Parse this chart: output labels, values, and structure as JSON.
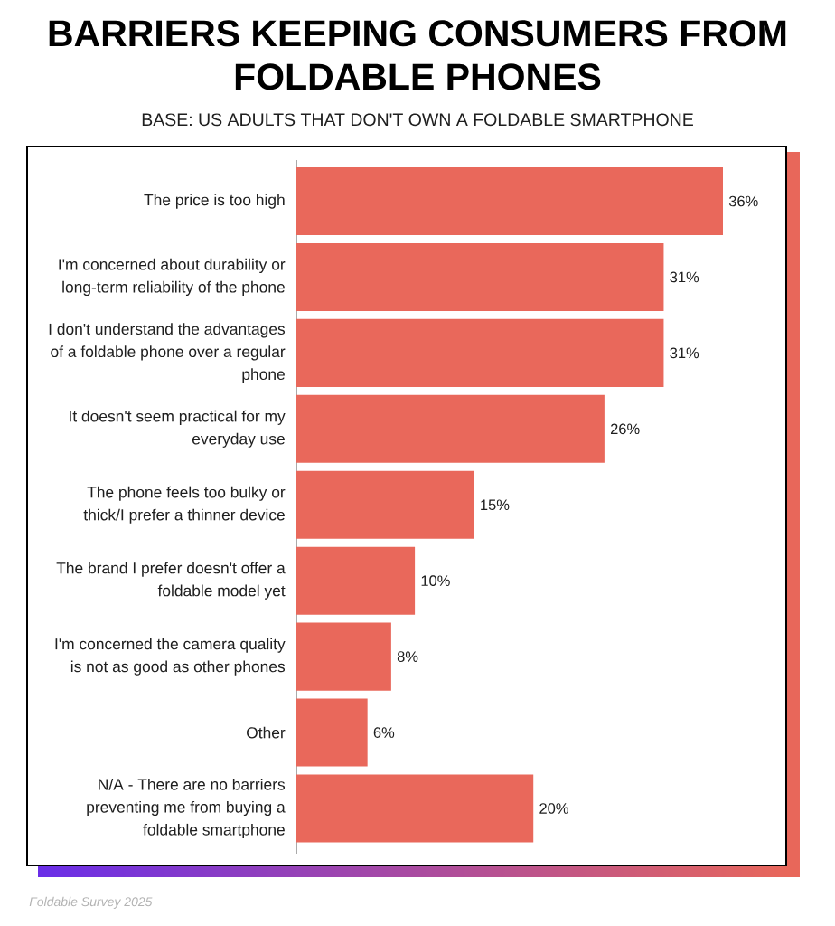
{
  "chart_data": {
    "type": "bar",
    "orientation": "horizontal",
    "title": "BARRIERS KEEPING CONSUMERS FROM FOLDABLE PHONES",
    "subtitle": "BASE: US ADULTS THAT DON'T OWN A FOLDABLE SMARTPHONE",
    "categories": [
      "The price is too high",
      "I'm concerned about durability or long-term reliability of the phone",
      "I don't understand the advantages of a foldable phone over a regular phone",
      "It doesn't seem practical for my everyday use",
      "The phone feels too bulky or thick/I prefer a thinner device",
      "The brand I prefer doesn't offer a foldable model yet",
      "I'm concerned the camera quality is not as good as other phones",
      "Other",
      "N/A - There are no barriers preventing me from buying a foldable smartphone"
    ],
    "values": [
      36,
      31,
      31,
      26,
      15,
      10,
      8,
      6,
      20
    ],
    "value_labels": [
      "36%",
      "31%",
      "31%",
      "26%",
      "15%",
      "10%",
      "8%",
      "6%",
      "20%"
    ],
    "color": "#e9685b",
    "annotations": [
      "Foldable Survey 2025"
    ]
  }
}
